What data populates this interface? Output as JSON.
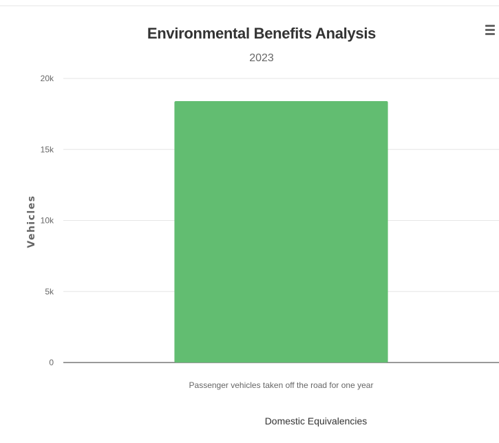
{
  "chart_data": {
    "type": "bar",
    "title": "Environmental Benefits Analysis",
    "subtitle": "2023",
    "categories": [
      "Passenger vehicles taken off the road for one year"
    ],
    "values": [
      18400
    ],
    "xlabel": "Domestic Equivalencies",
    "ylabel": "Vehicles",
    "ylim": [
      0,
      20000
    ],
    "yticks": [
      0,
      5000,
      10000,
      15000,
      20000
    ],
    "ytick_labels": [
      "0",
      "5k",
      "10k",
      "15k",
      "20k"
    ],
    "grid": true,
    "legend": "none",
    "bar_color": "#62bd71"
  },
  "menu": {
    "icon": "hamburger-menu-icon"
  }
}
